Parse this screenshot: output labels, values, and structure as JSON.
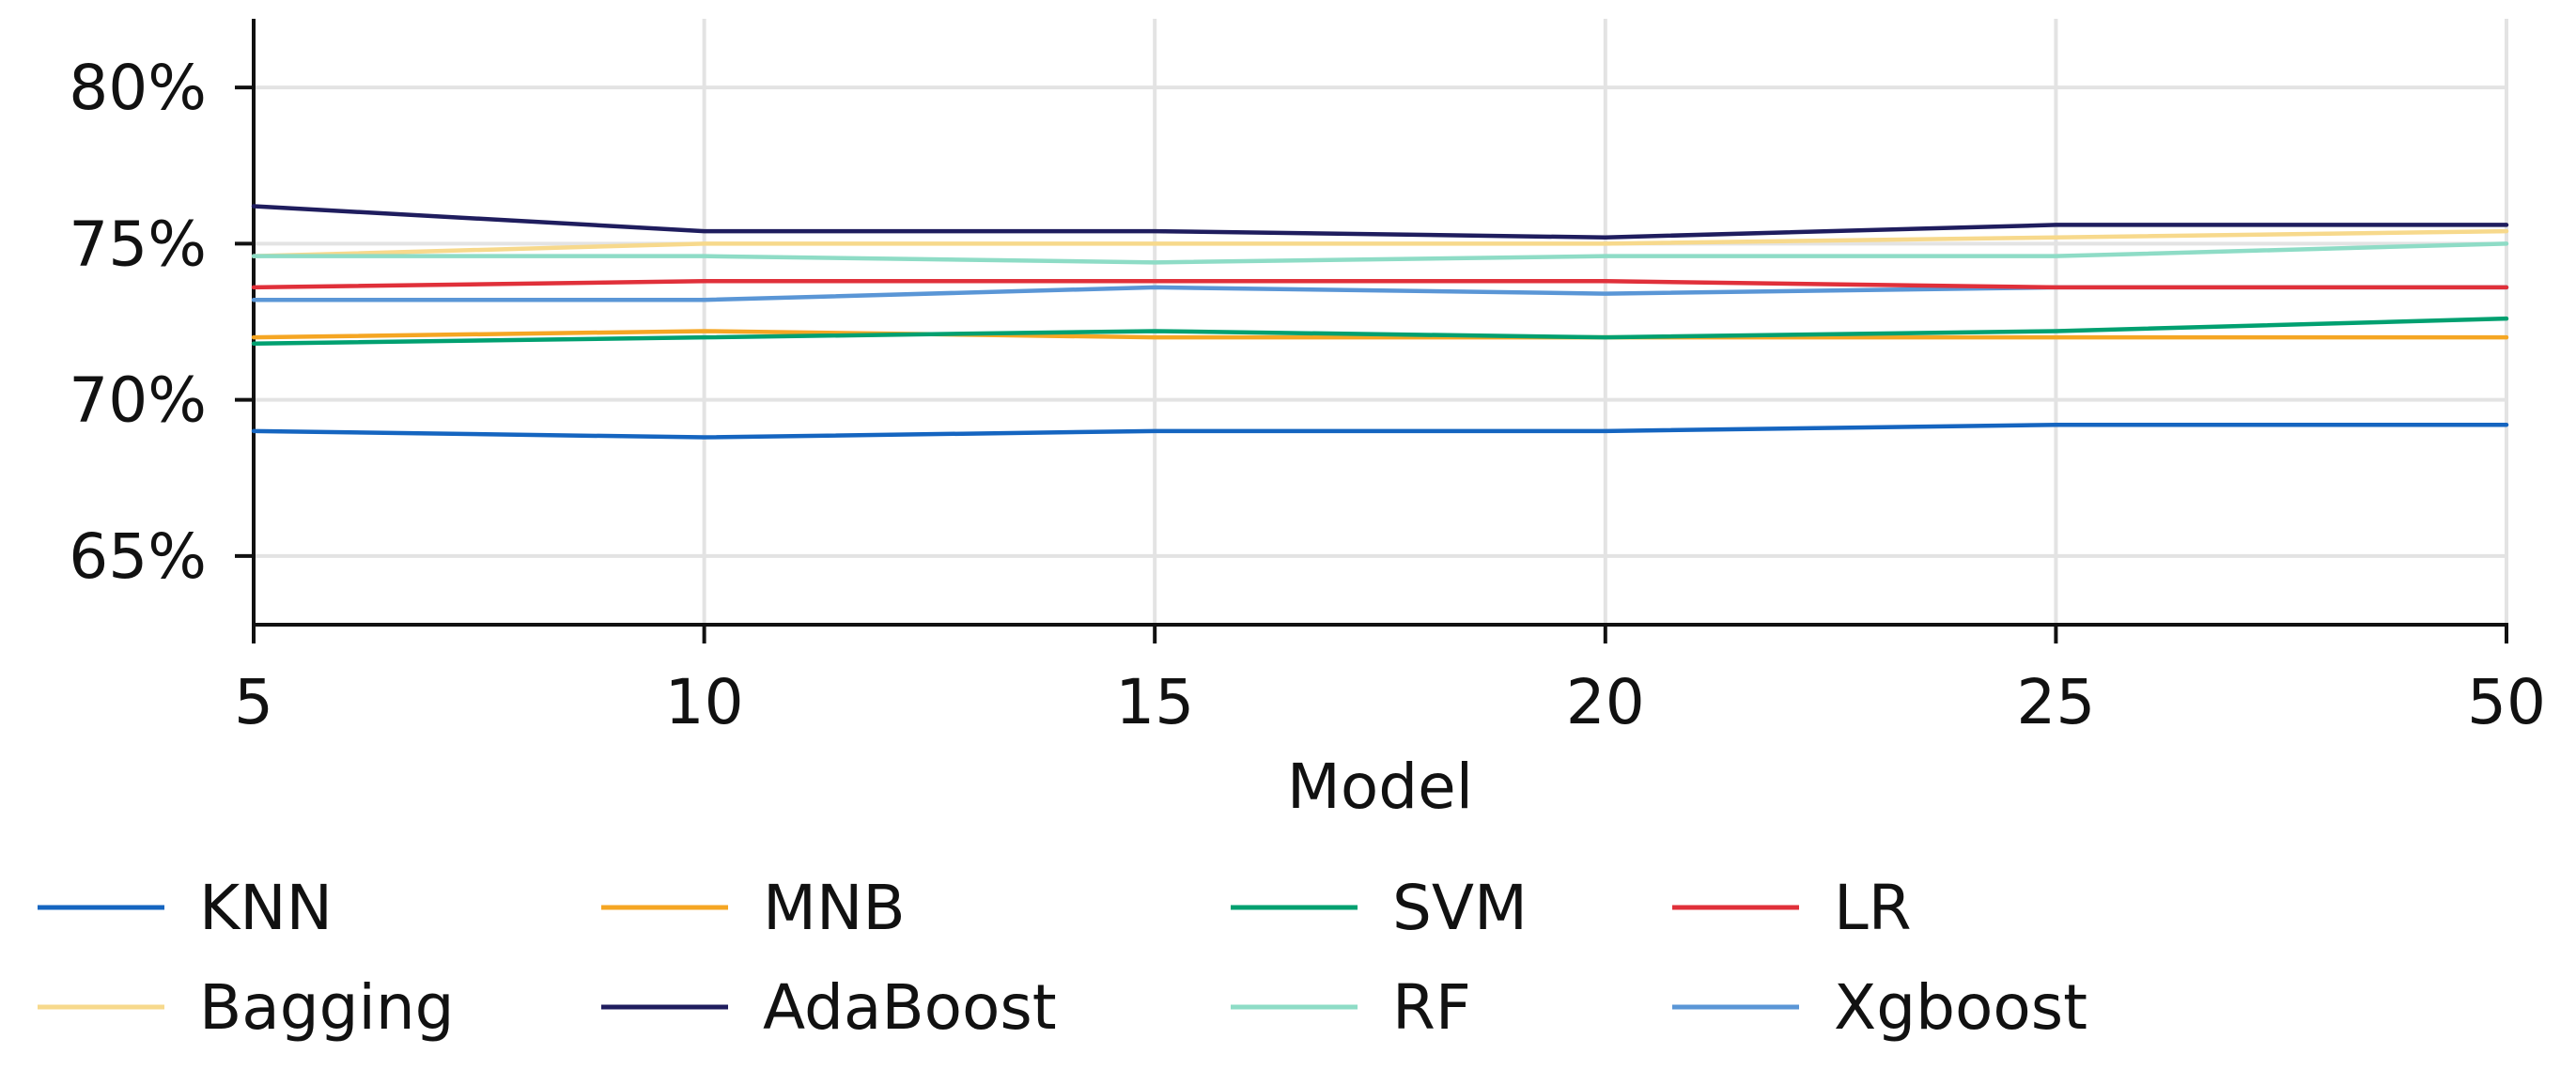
{
  "chart_data": {
    "type": "line",
    "title": "",
    "xlabel": "Model",
    "ylabel": "",
    "categories": [
      "5",
      "10",
      "15",
      "20",
      "25",
      "50"
    ],
    "ylim": [
      62.8,
      82.2
    ],
    "yticks": [
      65,
      70,
      75,
      80
    ],
    "ytick_labels": [
      "65%",
      "70%",
      "75%",
      "80%"
    ],
    "grid": true,
    "legend_position": "bottom",
    "series": [
      {
        "name": "KNN",
        "color": "#1565c0",
        "values": [
          69.0,
          68.8,
          69.0,
          69.0,
          69.2,
          69.2
        ]
      },
      {
        "name": "MNB",
        "color": "#f5a623",
        "values": [
          72.0,
          72.2,
          72.0,
          72.0,
          72.0,
          72.0
        ]
      },
      {
        "name": "SVM",
        "color": "#00a070",
        "values": [
          71.8,
          72.0,
          72.2,
          72.0,
          72.2,
          72.6
        ]
      },
      {
        "name": "LR",
        "color": "#e0303a",
        "values": [
          73.6,
          73.8,
          73.8,
          73.8,
          73.6,
          73.6
        ]
      },
      {
        "name": "Bagging",
        "color": "#f7d98c",
        "values": [
          74.6,
          75.0,
          75.0,
          75.0,
          75.2,
          75.4
        ]
      },
      {
        "name": "AdaBoost",
        "color": "#1f1d5e",
        "values": [
          76.2,
          75.4,
          75.4,
          75.2,
          75.6,
          75.6
        ]
      },
      {
        "name": "RF",
        "color": "#8edcc6",
        "values": [
          74.6,
          74.6,
          74.4,
          74.6,
          74.6,
          75.0
        ]
      },
      {
        "name": "Xgboost",
        "color": "#5a96d6",
        "values": [
          73.2,
          73.2,
          73.6,
          73.4,
          73.6,
          73.6
        ]
      }
    ]
  }
}
